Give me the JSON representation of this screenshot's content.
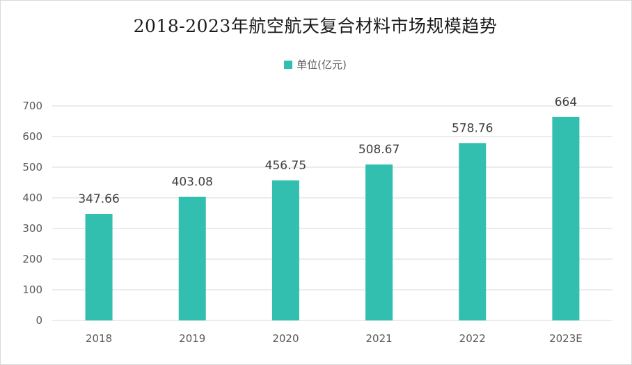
{
  "chart_data": {
    "type": "bar",
    "title": "2018-2023年航空航天复合材料市场规模趋势",
    "xlabel": "",
    "ylabel": "",
    "categories": [
      "2018",
      "2019",
      "2020",
      "2021",
      "2022",
      "2023E"
    ],
    "series": [
      {
        "name": "单位(亿元)",
        "values": [
          347.66,
          403.08,
          456.75,
          508.67,
          578.76,
          664
        ],
        "labels": [
          "347.66",
          "403.08",
          "456.75",
          "508.67",
          "578.76",
          "664"
        ],
        "color": "#32bfb0"
      }
    ],
    "ylim": [
      0,
      700
    ],
    "yticks": [
      0,
      100,
      200,
      300,
      400,
      500,
      600,
      700
    ],
    "grid": true,
    "legend_position": "top-center"
  },
  "colors": {
    "gridline": "#d9d9d9",
    "axis_line": "#d9d9d9"
  }
}
